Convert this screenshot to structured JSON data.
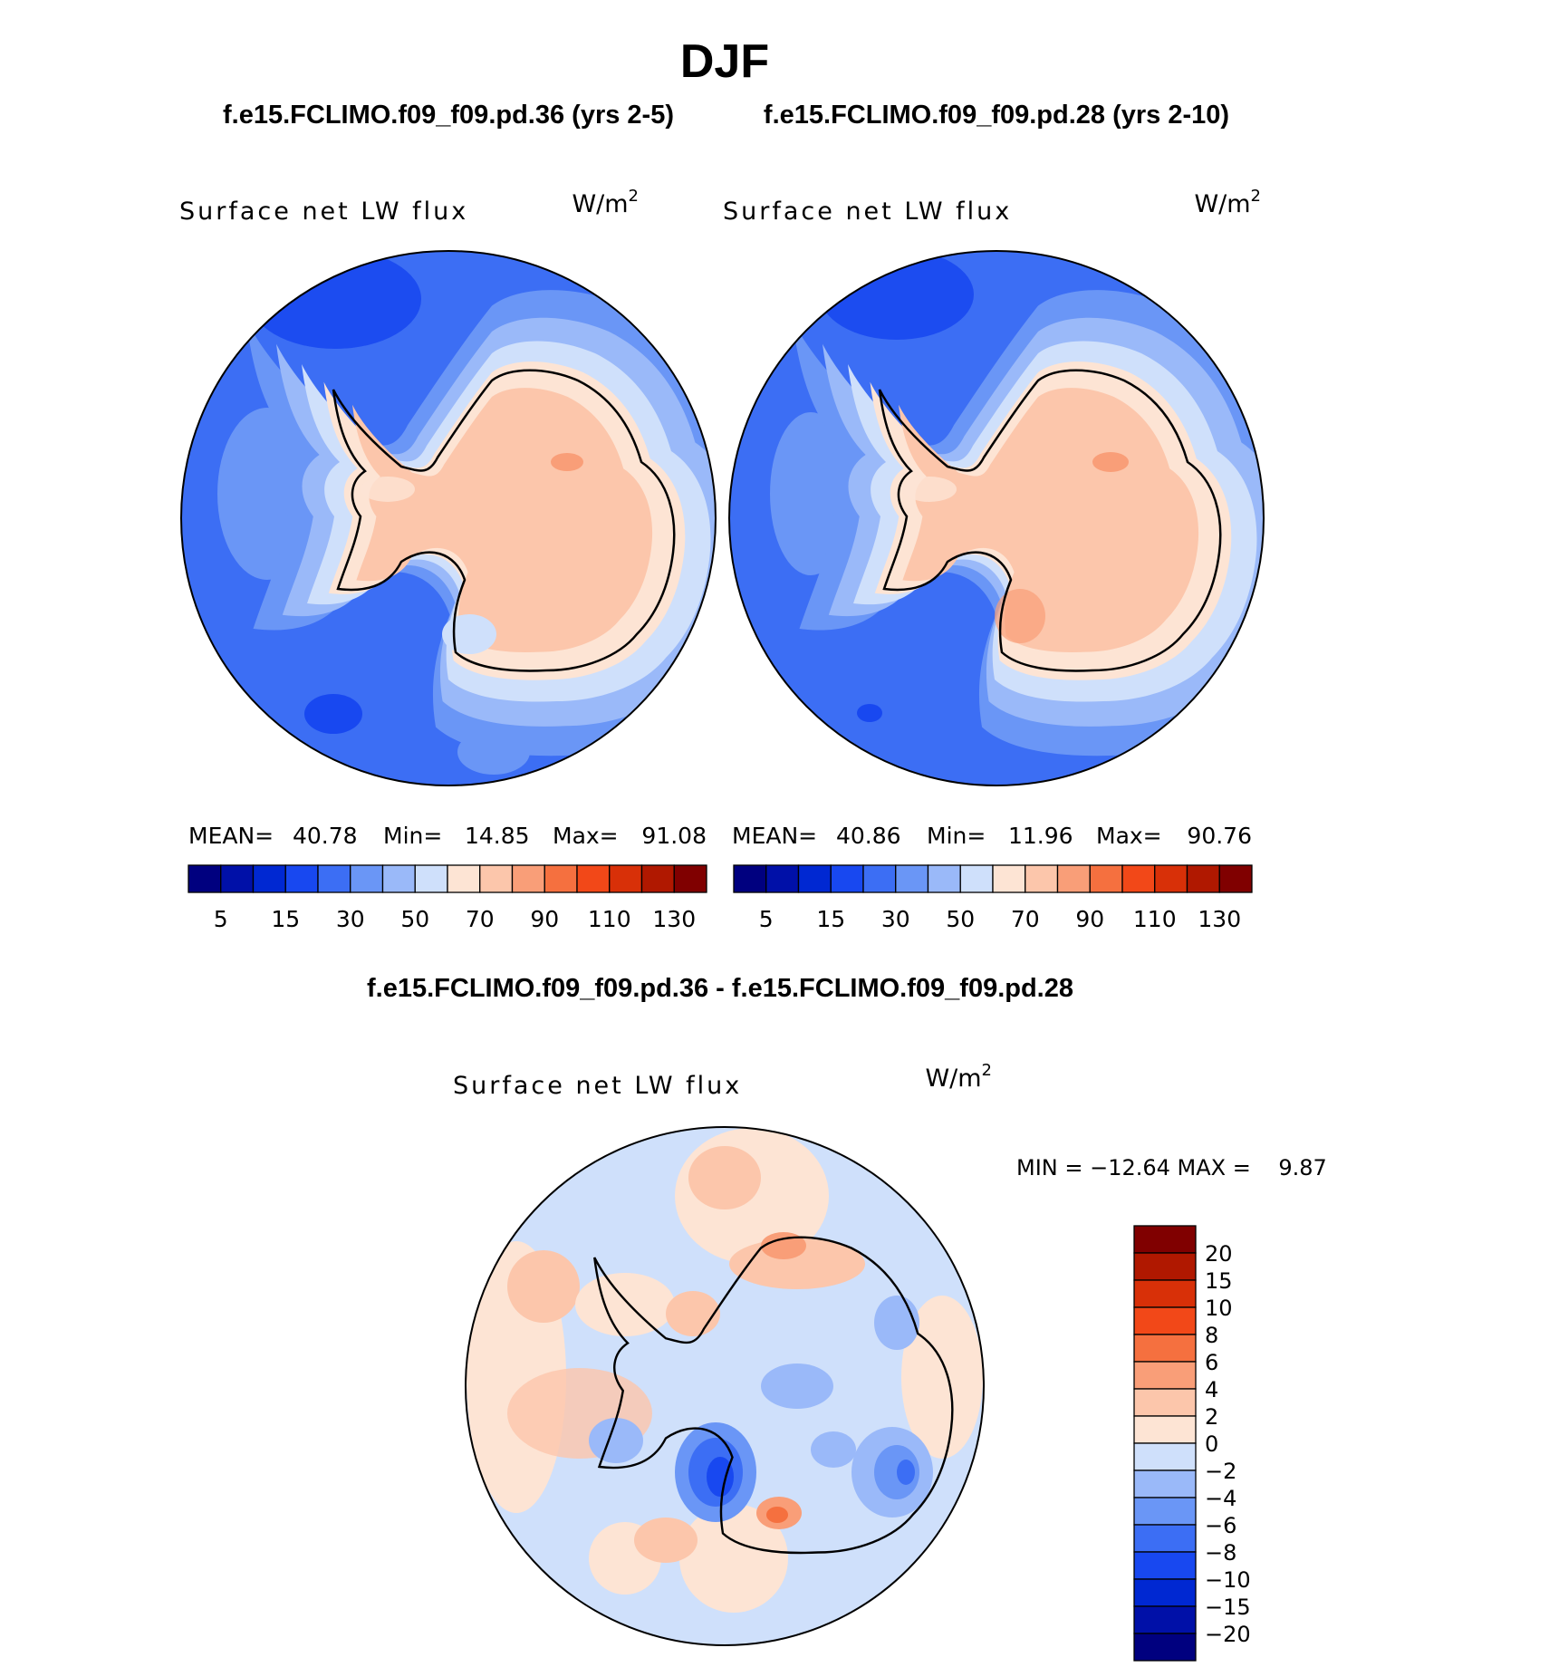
{
  "figure_title": "DJF",
  "panel_a": {
    "case_title": "f.e15.FCLIMO.f09_f09.pd.36 (yrs 2-5)",
    "field_label": "Surface net LW flux",
    "units_base": "W/m",
    "units_exp": "2",
    "stats": {
      "mean_label": "MEAN=",
      "mean": "40.78",
      "min_label": "Min=",
      "min": "14.85",
      "max_label": "Max=",
      "max": "91.08"
    }
  },
  "panel_b": {
    "case_title": "f.e15.FCLIMO.f09_f09.pd.28 (yrs 2-10)",
    "field_label": "Surface net LW flux",
    "units_base": "W/m",
    "units_exp": "2",
    "stats": {
      "mean_label": "MEAN=",
      "mean": "40.86",
      "min_label": "Min=",
      "min": "11.96",
      "max_label": "Max=",
      "max": "90.76"
    }
  },
  "panel_diff": {
    "case_title": "f.e15.FCLIMO.f09_f09.pd.36 - f.e15.FCLIMO.f09_f09.pd.28",
    "field_label": "Surface net LW flux",
    "units_base": "W/m",
    "units_exp": "2",
    "minmax_text": "MIN = −12.64 MAX =    9.87"
  },
  "chart_data": [
    {
      "type": "heatmap",
      "projection": "south-polar-stereographic",
      "title": "f.e15.FCLIMO.f09_f09.pd.36 (yrs 2-5)",
      "variable": "Surface net LW flux",
      "units": "W/m2",
      "mean": 40.78,
      "min": 14.85,
      "max": 91.08,
      "colorbar": {
        "levels": [
          5,
          10,
          15,
          20,
          30,
          40,
          50,
          60,
          70,
          80,
          90,
          100,
          110,
          120,
          130
        ],
        "tick_labels": [
          "5",
          "15",
          "30",
          "50",
          "70",
          "90",
          "110",
          "130"
        ],
        "colors": [
          "#00007f",
          "#0010a8",
          "#0028d2",
          "#1848f0",
          "#3c6ef4",
          "#6a96f6",
          "#9ab9f9",
          "#cfe0fb",
          "#fde4d4",
          "#fcc6ab",
          "#f99e78",
          "#f5703f",
          "#f24818",
          "#d83008",
          "#b01800",
          "#800000"
        ]
      }
    },
    {
      "type": "heatmap",
      "projection": "south-polar-stereographic",
      "title": "f.e15.FCLIMO.f09_f09.pd.28 (yrs 2-10)",
      "variable": "Surface net LW flux",
      "units": "W/m2",
      "mean": 40.86,
      "min": 11.96,
      "max": 90.76,
      "colorbar": {
        "levels": [
          5,
          10,
          15,
          20,
          30,
          40,
          50,
          60,
          70,
          80,
          90,
          100,
          110,
          120,
          130
        ],
        "tick_labels": [
          "5",
          "15",
          "30",
          "50",
          "70",
          "90",
          "110",
          "130"
        ],
        "colors": [
          "#00007f",
          "#0010a8",
          "#0028d2",
          "#1848f0",
          "#3c6ef4",
          "#6a96f6",
          "#9ab9f9",
          "#cfe0fb",
          "#fde4d4",
          "#fcc6ab",
          "#f99e78",
          "#f5703f",
          "#f24818",
          "#d83008",
          "#b01800",
          "#800000"
        ]
      }
    },
    {
      "type": "heatmap",
      "projection": "south-polar-stereographic",
      "title": "f.e15.FCLIMO.f09_f09.pd.36 - f.e15.FCLIMO.f09_f09.pd.28",
      "variable": "Surface net LW flux",
      "units": "W/m2",
      "min": -12.64,
      "max": 9.87,
      "colorbar": {
        "orientation": "vertical",
        "tick_labels": [
          "20",
          "15",
          "10",
          "8",
          "6",
          "4",
          "2",
          "0",
          "−2",
          "−4",
          "−6",
          "−8",
          "−10",
          "−15",
          "−20"
        ],
        "colors": [
          "#800000",
          "#b01800",
          "#d83008",
          "#f24818",
          "#f5703f",
          "#f99e78",
          "#fcc6ab",
          "#fde4d4",
          "#cfe0fb",
          "#9ab9f9",
          "#6a96f6",
          "#3c6ef4",
          "#1848f0",
          "#0028d2",
          "#0010a8",
          "#00007f"
        ]
      }
    }
  ]
}
